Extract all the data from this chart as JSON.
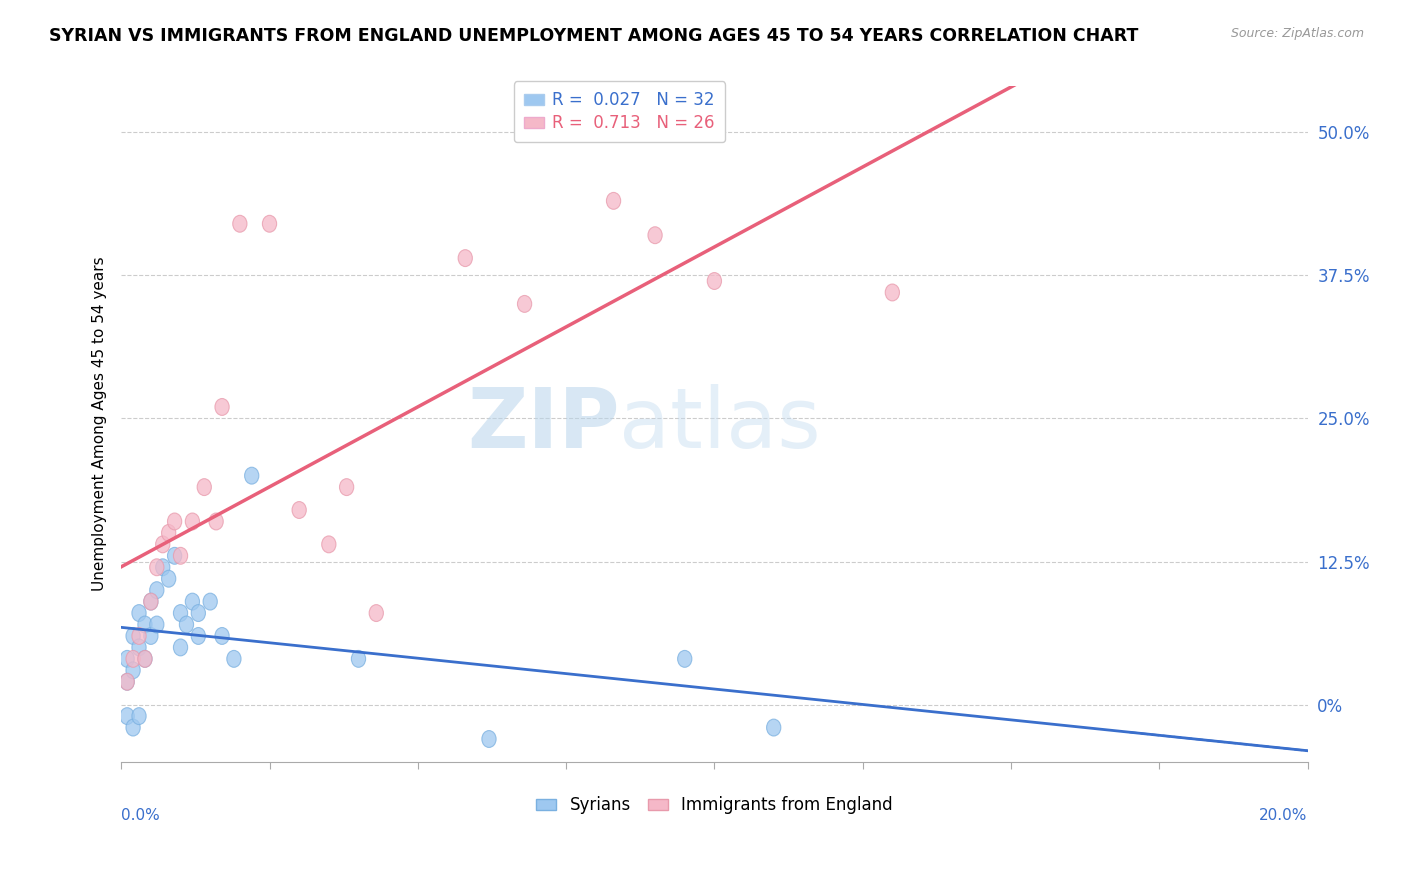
{
  "title": "SYRIAN VS IMMIGRANTS FROM ENGLAND UNEMPLOYMENT AMONG AGES 45 TO 54 YEARS CORRELATION CHART",
  "source": "Source: ZipAtlas.com",
  "ylabel": "Unemployment Among Ages 45 to 54 years",
  "ytick_labels": [
    "0%",
    "12.5%",
    "25.0%",
    "37.5%",
    "50.0%"
  ],
  "ytick_values": [
    0.0,
    0.125,
    0.25,
    0.375,
    0.5
  ],
  "xlim": [
    0.0,
    0.2
  ],
  "ylim": [
    -0.05,
    0.54
  ],
  "syrians_R": 0.027,
  "syrians_N": 32,
  "england_R": 0.713,
  "england_N": 26,
  "syrians_color": "#9ec8f0",
  "england_color": "#f5b8c8",
  "syrians_line_color": "#3a6fcc",
  "england_line_color": "#e8607a",
  "watermark_zip": "ZIP",
  "watermark_atlas": "atlas",
  "watermark_color_zip": "#c5dcf0",
  "watermark_color_atlas": "#c5dcf0",
  "syrians_x": [
    0.001,
    0.001,
    0.001,
    0.002,
    0.002,
    0.002,
    0.003,
    0.003,
    0.003,
    0.004,
    0.004,
    0.005,
    0.005,
    0.006,
    0.006,
    0.007,
    0.008,
    0.009,
    0.01,
    0.01,
    0.011,
    0.012,
    0.013,
    0.013,
    0.015,
    0.017,
    0.019,
    0.022,
    0.04,
    0.062,
    0.095,
    0.11
  ],
  "syrians_y": [
    0.04,
    0.02,
    -0.01,
    0.06,
    0.03,
    -0.02,
    0.08,
    0.05,
    -0.01,
    0.07,
    0.04,
    0.09,
    0.06,
    0.1,
    0.07,
    0.12,
    0.11,
    0.13,
    0.05,
    0.08,
    0.07,
    0.09,
    0.06,
    0.08,
    0.09,
    0.06,
    0.04,
    0.2,
    0.04,
    -0.03,
    0.04,
    -0.02
  ],
  "england_x": [
    0.001,
    0.002,
    0.003,
    0.004,
    0.005,
    0.006,
    0.007,
    0.008,
    0.009,
    0.01,
    0.012,
    0.014,
    0.016,
    0.017,
    0.02,
    0.025,
    0.03,
    0.035,
    0.038,
    0.043,
    0.058,
    0.068,
    0.083,
    0.09,
    0.1,
    0.13
  ],
  "england_y": [
    0.02,
    0.04,
    0.06,
    0.04,
    0.09,
    0.12,
    0.14,
    0.15,
    0.16,
    0.13,
    0.16,
    0.19,
    0.16,
    0.26,
    0.42,
    0.42,
    0.17,
    0.14,
    0.19,
    0.08,
    0.39,
    0.35,
    0.44,
    0.41,
    0.37,
    0.36
  ]
}
